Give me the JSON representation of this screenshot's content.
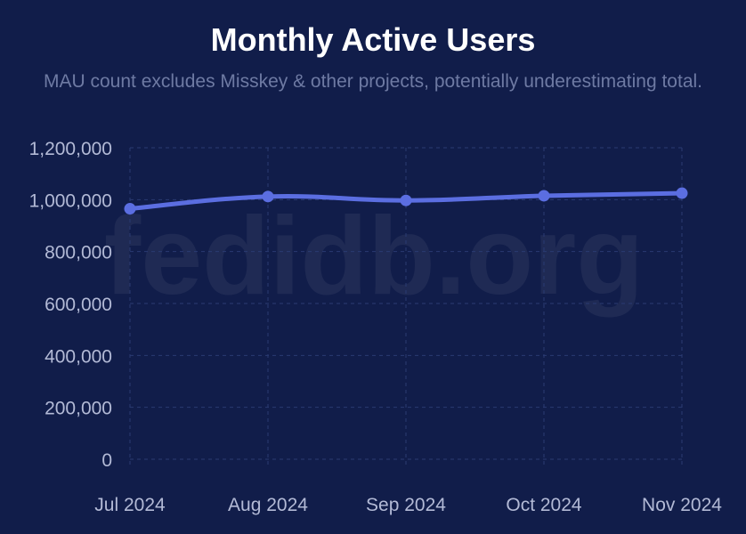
{
  "chart_data": {
    "type": "line",
    "title": "Monthly Active Users",
    "subtitle": "MAU count excludes Misskey & other projects, potentially underestimating total.",
    "watermark": "fedidb.org",
    "categories": [
      "Jul 2024",
      "Aug 2024",
      "Sep 2024",
      "Oct 2024",
      "Nov 2024"
    ],
    "series": [
      {
        "values": [
          965000,
          1012000,
          997000,
          1015000,
          1025000
        ],
        "color": "#5b6ee1"
      }
    ],
    "yticks": [
      0,
      200000,
      400000,
      600000,
      800000,
      1000000,
      1200000
    ],
    "ytick_labels": [
      "0",
      "200,000",
      "400,000",
      "600,000",
      "800,000",
      "1,000,000",
      "1,200,000"
    ],
    "ylim": [
      0,
      1200000
    ],
    "grid": true,
    "legend": "none"
  }
}
